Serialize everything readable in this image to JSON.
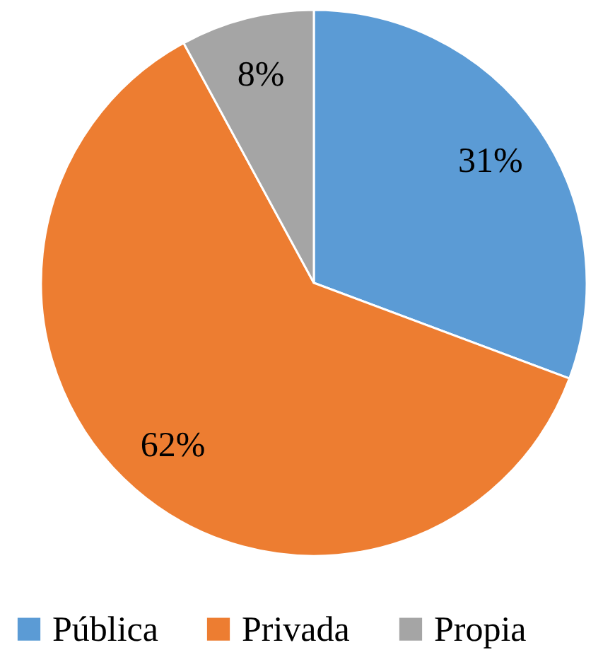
{
  "chart_data": {
    "type": "pie",
    "categories": [
      "Pública",
      "Privada",
      "Propia"
    ],
    "values": [
      31,
      62,
      8
    ],
    "colors": [
      "#5b9bd5",
      "#ed7d31",
      "#a5a5a5"
    ],
    "value_labels": [
      "31%",
      "62%",
      "8%"
    ],
    "legend": "bottom"
  }
}
